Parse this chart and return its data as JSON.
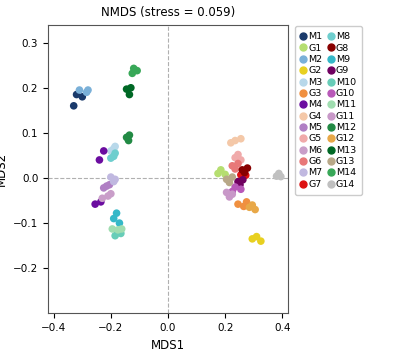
{
  "title": "NMDS (stress = 0.059)",
  "xlabel": "MDS1",
  "ylabel": "MDS2",
  "xlim": [
    -0.42,
    0.42
  ],
  "ylim": [
    -0.3,
    0.34
  ],
  "xticks": [
    -0.4,
    -0.2,
    0.0,
    0.2,
    0.4
  ],
  "yticks": [
    -0.2,
    -0.1,
    0.0,
    0.1,
    0.2,
    0.3
  ],
  "groups": {
    "M1": {
      "color": "#1a3a6b",
      "points": [
        [
          -0.32,
          0.185
        ],
        [
          -0.3,
          0.18
        ],
        [
          -0.33,
          0.16
        ]
      ]
    },
    "M2": {
      "color": "#7ab0d8",
      "points": [
        [
          -0.31,
          0.195
        ],
        [
          -0.28,
          0.195
        ],
        [
          -0.285,
          0.19
        ]
      ]
    },
    "M3": {
      "color": "#b8d8ea",
      "points": [
        [
          -0.19,
          0.065
        ],
        [
          -0.2,
          0.06
        ],
        [
          -0.185,
          0.07
        ]
      ]
    },
    "M4": {
      "color": "#6b0da0",
      "points": [
        [
          -0.225,
          0.06
        ],
        [
          -0.24,
          0.04
        ],
        [
          -0.235,
          -0.053
        ],
        [
          -0.255,
          -0.058
        ]
      ]
    },
    "M5": {
      "color": "#b07fc4",
      "points": [
        [
          -0.215,
          -0.018
        ],
        [
          -0.225,
          -0.022
        ],
        [
          -0.205,
          -0.015
        ]
      ]
    },
    "M6": {
      "color": "#c99ec9",
      "points": [
        [
          -0.21,
          -0.04
        ],
        [
          -0.2,
          -0.035
        ],
        [
          -0.23,
          -0.045
        ]
      ]
    },
    "M7": {
      "color": "#c0b8e0",
      "points": [
        [
          -0.19,
          -0.008
        ],
        [
          -0.2,
          0.002
        ],
        [
          -0.185,
          -0.003
        ]
      ]
    },
    "M8": {
      "color": "#6ecece",
      "points": [
        [
          -0.19,
          0.048
        ],
        [
          -0.185,
          0.055
        ],
        [
          -0.2,
          0.044
        ]
      ]
    },
    "M9": {
      "color": "#35b8c8",
      "points": [
        [
          -0.18,
          -0.078
        ],
        [
          -0.19,
          -0.09
        ],
        [
          -0.17,
          -0.1
        ]
      ]
    },
    "M10": {
      "color": "#68cdb8",
      "points": [
        [
          -0.175,
          -0.118
        ],
        [
          -0.185,
          -0.128
        ],
        [
          -0.165,
          -0.123
        ]
      ]
    },
    "M11": {
      "color": "#a0ddb0",
      "points": [
        [
          -0.175,
          -0.115
        ],
        [
          -0.195,
          -0.113
        ],
        [
          -0.162,
          -0.113
        ]
      ]
    },
    "M12": {
      "color": "#228a44",
      "points": [
        [
          -0.145,
          0.09
        ],
        [
          -0.135,
          0.095
        ],
        [
          -0.138,
          0.083
        ]
      ]
    },
    "M13": {
      "color": "#006825",
      "points": [
        [
          -0.13,
          0.2
        ],
        [
          -0.145,
          0.197
        ],
        [
          -0.135,
          0.185
        ]
      ]
    },
    "M14": {
      "color": "#38a858",
      "points": [
        [
          -0.12,
          0.243
        ],
        [
          -0.108,
          0.238
        ],
        [
          -0.125,
          0.232
        ]
      ]
    },
    "G1": {
      "color": "#b5de70",
      "points": [
        [
          0.175,
          0.01
        ],
        [
          0.2,
          0.008
        ],
        [
          0.185,
          0.018
        ]
      ]
    },
    "G2": {
      "color": "#e8d020",
      "points": [
        [
          0.31,
          -0.13
        ],
        [
          0.295,
          -0.135
        ],
        [
          0.325,
          -0.14
        ]
      ]
    },
    "G3": {
      "color": "#f09040",
      "points": [
        [
          0.245,
          -0.058
        ],
        [
          0.265,
          -0.063
        ],
        [
          0.275,
          -0.053
        ]
      ]
    },
    "G4": {
      "color": "#f4c8a8",
      "points": [
        [
          0.22,
          0.078
        ],
        [
          0.235,
          0.083
        ],
        [
          0.255,
          0.087
        ]
      ]
    },
    "G5": {
      "color": "#f0aaaa",
      "points": [
        [
          0.235,
          0.045
        ],
        [
          0.255,
          0.04
        ],
        [
          0.245,
          0.052
        ]
      ]
    },
    "G6": {
      "color": "#e87878",
      "points": [
        [
          0.225,
          0.027
        ],
        [
          0.245,
          0.032
        ],
        [
          0.235,
          0.02
        ]
      ]
    },
    "G7": {
      "color": "#dd1111",
      "points": [
        [
          0.255,
          0.007
        ],
        [
          0.265,
          0.012
        ],
        [
          0.272,
          0.006
        ]
      ]
    },
    "G8": {
      "color": "#880000",
      "points": [
        [
          0.26,
          0.018
        ],
        [
          0.278,
          0.022
        ],
        [
          0.268,
          0.012
        ]
      ]
    },
    "G9": {
      "color": "#700060",
      "points": [
        [
          0.245,
          -0.008
        ],
        [
          0.262,
          -0.004
        ],
        [
          0.252,
          -0.015
        ]
      ]
    },
    "G10": {
      "color": "#b858b8",
      "points": [
        [
          0.235,
          -0.02
        ],
        [
          0.255,
          -0.025
        ],
        [
          0.225,
          -0.03
        ]
      ]
    },
    "G11": {
      "color": "#c898c8",
      "points": [
        [
          0.205,
          -0.032
        ],
        [
          0.225,
          -0.036
        ],
        [
          0.215,
          -0.042
        ]
      ]
    },
    "G12": {
      "color": "#e8a848",
      "points": [
        [
          0.285,
          -0.065
        ],
        [
          0.305,
          -0.07
        ],
        [
          0.295,
          -0.06
        ]
      ]
    },
    "G13": {
      "color": "#b8a888",
      "points": [
        [
          0.205,
          -0.003
        ],
        [
          0.225,
          0.002
        ],
        [
          0.215,
          -0.01
        ]
      ]
    },
    "G14": {
      "color": "#c0c0c0",
      "points": [
        [
          0.38,
          0.004
        ],
        [
          0.395,
          0.003
        ],
        [
          0.388,
          0.01
        ]
      ]
    }
  },
  "marker_size": 30,
  "dash_color": "#b0b0b0",
  "legend_fontsize": 6.8,
  "title_fontsize": 8.5,
  "axis_label_fontsize": 8.5,
  "tick_fontsize": 7.5
}
